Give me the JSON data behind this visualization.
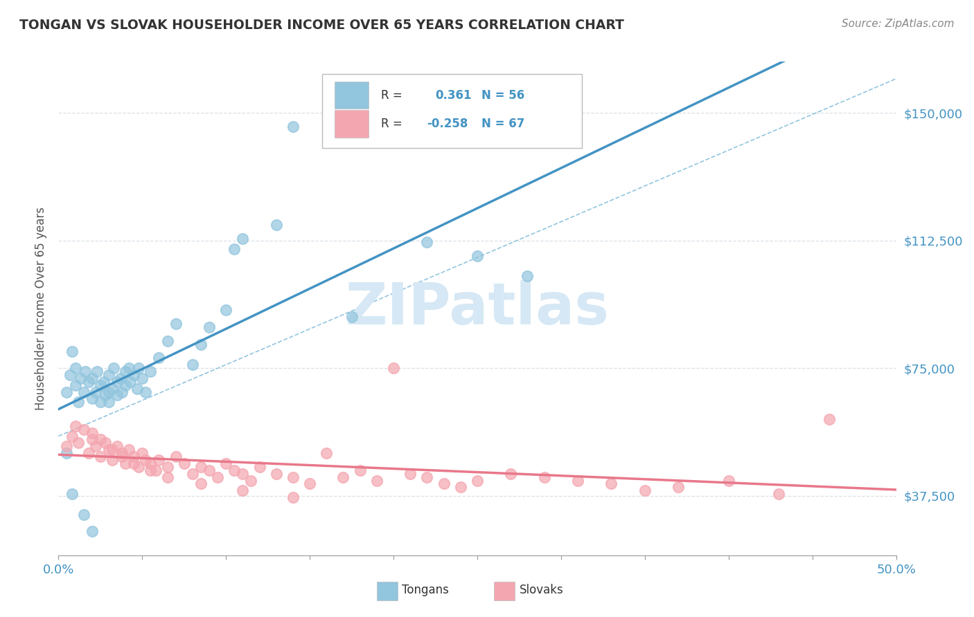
{
  "title": "TONGAN VS SLOVAK HOUSEHOLDER INCOME OVER 65 YEARS CORRELATION CHART",
  "source_text": "Source: ZipAtlas.com",
  "ylabel": "Householder Income Over 65 years",
  "xlim": [
    0.0,
    0.5
  ],
  "ylim": [
    20000,
    165000
  ],
  "yticks": [
    37500,
    75000,
    112500,
    150000
  ],
  "ytick_labels": [
    "$37,500",
    "$75,000",
    "$112,500",
    "$150,000"
  ],
  "xticks": [
    0.0,
    0.05,
    0.1,
    0.15,
    0.2,
    0.25,
    0.3,
    0.35,
    0.4,
    0.45,
    0.5
  ],
  "xtick_labels_show": [
    "0.0%",
    "50.0%"
  ],
  "tongan_R": "0.361",
  "tongan_N": "56",
  "slovak_R": "-0.258",
  "slovak_N": "67",
  "tongan_scatter_color": "#92c5de",
  "slovak_scatter_color": "#f4a6b0",
  "tongan_line_color": "#4393c3",
  "slovak_line_color": "#e8788a",
  "ref_line_color": "#92c5de",
  "legend_text_color": "#4393c3",
  "background_color": "#ffffff",
  "watermark_text": "ZIPatlas",
  "watermark_color": "#d6e8f5",
  "tongan_scatter_x": [
    0.005,
    0.007,
    0.008,
    0.01,
    0.01,
    0.012,
    0.013,
    0.015,
    0.016,
    0.018,
    0.02,
    0.02,
    0.022,
    0.023,
    0.025,
    0.025,
    0.027,
    0.028,
    0.03,
    0.03,
    0.032,
    0.033,
    0.035,
    0.035,
    0.037,
    0.038,
    0.04,
    0.04,
    0.042,
    0.043,
    0.045,
    0.047,
    0.048,
    0.05,
    0.052,
    0.055,
    0.06,
    0.065,
    0.07,
    0.08,
    0.085,
    0.09,
    0.1,
    0.105,
    0.11,
    0.13,
    0.14,
    0.175,
    0.22,
    0.25,
    0.005,
    0.008,
    0.015,
    0.02,
    0.03,
    0.28
  ],
  "tongan_scatter_y": [
    68000,
    73000,
    80000,
    70000,
    75000,
    65000,
    72000,
    68000,
    74000,
    71000,
    66000,
    72000,
    68000,
    74000,
    70000,
    65000,
    71000,
    67000,
    68000,
    73000,
    69000,
    75000,
    71000,
    67000,
    72000,
    68000,
    74000,
    70000,
    75000,
    71000,
    73000,
    69000,
    75000,
    72000,
    68000,
    74000,
    78000,
    83000,
    88000,
    76000,
    82000,
    87000,
    92000,
    110000,
    113000,
    117000,
    146000,
    90000,
    112000,
    108000,
    50000,
    38000,
    32000,
    27000,
    65000,
    102000
  ],
  "slovak_scatter_x": [
    0.005,
    0.008,
    0.01,
    0.012,
    0.015,
    0.018,
    0.02,
    0.022,
    0.025,
    0.028,
    0.03,
    0.032,
    0.035,
    0.038,
    0.04,
    0.042,
    0.045,
    0.048,
    0.05,
    0.052,
    0.055,
    0.058,
    0.06,
    0.065,
    0.07,
    0.075,
    0.08,
    0.085,
    0.09,
    0.095,
    0.1,
    0.105,
    0.11,
    0.115,
    0.12,
    0.13,
    0.14,
    0.15,
    0.16,
    0.17,
    0.18,
    0.19,
    0.2,
    0.21,
    0.22,
    0.23,
    0.24,
    0.25,
    0.27,
    0.29,
    0.31,
    0.33,
    0.35,
    0.37,
    0.4,
    0.43,
    0.46,
    0.02,
    0.025,
    0.032,
    0.038,
    0.045,
    0.055,
    0.065,
    0.085,
    0.11,
    0.14
  ],
  "slovak_scatter_y": [
    52000,
    55000,
    58000,
    53000,
    57000,
    50000,
    54000,
    52000,
    49000,
    53000,
    51000,
    48000,
    52000,
    50000,
    47000,
    51000,
    49000,
    46000,
    50000,
    48000,
    47000,
    45000,
    48000,
    46000,
    49000,
    47000,
    44000,
    46000,
    45000,
    43000,
    47000,
    45000,
    44000,
    42000,
    46000,
    44000,
    43000,
    41000,
    50000,
    43000,
    45000,
    42000,
    75000,
    44000,
    43000,
    41000,
    40000,
    42000,
    44000,
    43000,
    42000,
    41000,
    39000,
    40000,
    42000,
    38000,
    60000,
    56000,
    54000,
    51000,
    49000,
    47000,
    45000,
    43000,
    41000,
    39000,
    37000
  ]
}
